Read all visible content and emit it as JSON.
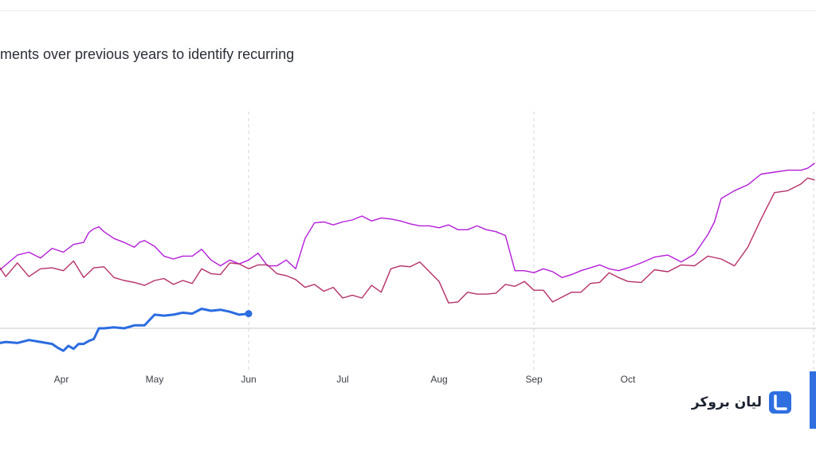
{
  "header": {
    "subtitle": "ments over previous years to identify recurring"
  },
  "brand": {
    "name": "لیان بروکر",
    "logo": "lian-broker-logo",
    "color": "#2f6fe0"
  },
  "chart_data": {
    "type": "line",
    "x_axis": {
      "ticks": [
        "Apr",
        "May",
        "Jun",
        "Jul",
        "Aug",
        "Sep",
        "Oct"
      ],
      "tick_positions": [
        0.08,
        1.0,
        2.0,
        3.0,
        4.0,
        5.0,
        6.0
      ],
      "gridlines_at_ticks": [
        "Jun",
        "Sep"
      ],
      "range": [
        -0.45,
        7.4
      ]
    },
    "y_axis": {
      "range": [
        -4,
        22
      ],
      "baseline": 0,
      "labels_visible": false
    },
    "grid": true,
    "series": [
      {
        "color": "#b41cd9",
        "stroke_width": 1.4,
        "x": [
          -0.45,
          -0.4,
          -0.3,
          -0.2,
          -0.1,
          0.0,
          0.1,
          0.2,
          0.3,
          0.35,
          0.4,
          0.45,
          0.5,
          0.6,
          0.7,
          0.8,
          0.85,
          0.9,
          1.0,
          1.1,
          1.2,
          1.3,
          1.4,
          1.5,
          1.6,
          1.7,
          1.8,
          1.9,
          2.0,
          2.1,
          2.2,
          2.3,
          2.4,
          2.5,
          2.6,
          2.7,
          2.8,
          2.9,
          3.0,
          3.1,
          3.2,
          3.3,
          3.4,
          3.5,
          3.6,
          3.7,
          3.8,
          3.9,
          4.0,
          4.1,
          4.2,
          4.3,
          4.4,
          4.5,
          4.6,
          4.7,
          4.8,
          4.9,
          5.0,
          5.1,
          5.2,
          5.3,
          5.4,
          5.5,
          5.6,
          5.7,
          5.8,
          5.9,
          6.0,
          6.1,
          6.2,
          6.3,
          6.4,
          6.5,
          6.6,
          6.65,
          6.7,
          6.8,
          6.9,
          7.0,
          7.1,
          7.2,
          7.3,
          7.35,
          7.4
        ],
        "y": [
          6,
          6.5,
          7.5,
          7.8,
          7.2,
          8.2,
          7.8,
          8.6,
          8.8,
          9.8,
          10.2,
          10.4,
          9.9,
          9.2,
          8.8,
          8.3,
          8.8,
          9,
          8.4,
          7.4,
          7.1,
          7.4,
          7.4,
          8.1,
          7,
          6.4,
          7,
          6.6,
          7,
          7.7,
          6.4,
          6.4,
          7,
          6.1,
          9.2,
          10.8,
          10.9,
          10.6,
          10.9,
          11.1,
          11.5,
          11,
          11.3,
          11.2,
          11,
          10.7,
          10.5,
          10.5,
          10.3,
          10.6,
          10.1,
          10.1,
          10.5,
          10.1,
          9.9,
          9.5,
          5.9,
          5.9,
          5.7,
          6.1,
          5.8,
          5.2,
          5.5,
          5.9,
          6.2,
          6.5,
          6.1,
          5.9,
          6.2,
          6.7,
          7.3,
          7.5,
          6.8,
          7.6,
          9.6,
          10.9,
          13.3,
          14.1,
          14.7,
          15.8,
          16,
          16.2,
          16.2,
          16.4,
          16.9
        ]
      },
      {
        "color": "#b5306a",
        "stroke_width": 1.4,
        "x": [
          -0.45,
          -0.4,
          -0.3,
          -0.2,
          -0.1,
          0.0,
          0.1,
          0.2,
          0.3,
          0.4,
          0.5,
          0.6,
          0.7,
          0.8,
          0.9,
          1.0,
          1.1,
          1.2,
          1.3,
          1.4,
          1.5,
          1.6,
          1.7,
          1.8,
          1.9,
          2.0,
          2.1,
          2.2,
          2.3,
          2.4,
          2.5,
          2.6,
          2.7,
          2.8,
          2.9,
          3.0,
          3.1,
          3.2,
          3.3,
          3.4,
          3.5,
          3.6,
          3.7,
          3.8,
          3.9,
          4.0,
          4.1,
          4.2,
          4.3,
          4.4,
          4.5,
          4.6,
          4.7,
          4.8,
          4.9,
          5.0,
          5.1,
          5.2,
          5.3,
          5.4,
          5.5,
          5.6,
          5.7,
          5.8,
          5.9,
          6.0,
          6.1,
          6.2,
          6.3,
          6.4,
          6.5,
          6.6,
          6.7,
          6.8,
          6.9,
          7.0,
          7.1,
          7.2,
          7.3,
          7.35,
          7.4
        ],
        "y": [
          6.2,
          5.3,
          6.7,
          5.3,
          6.1,
          6.2,
          5.9,
          6.9,
          5.2,
          6.2,
          6.3,
          5.2,
          4.9,
          4.7,
          4.4,
          4.9,
          5.1,
          4.5,
          4.9,
          4.6,
          6.1,
          5.6,
          5.5,
          6.7,
          6.6,
          6.1,
          6.5,
          6.5,
          5.6,
          5.4,
          5,
          4.2,
          4.5,
          3.8,
          4.2,
          3.1,
          3.4,
          3.1,
          4.4,
          3.7,
          6.1,
          6.4,
          6.3,
          6.8,
          5.8,
          4.8,
          2.6,
          2.7,
          3.7,
          3.5,
          3.5,
          3.6,
          4.5,
          4.3,
          4.8,
          3.9,
          3.9,
          2.7,
          3.2,
          3.7,
          3.7,
          4.6,
          4.7,
          5.7,
          5.2,
          4.8,
          4.7,
          6,
          5.8,
          6.5,
          6.4,
          7.4,
          7.1,
          6.4,
          8.3,
          11.2,
          13.9,
          14.1,
          14.8,
          15.4,
          15.2
        ]
      },
      {
        "color": "#2b6ce0",
        "stroke_width": 3,
        "end_marker": true,
        "x": [
          -0.45,
          -0.4,
          -0.3,
          -0.2,
          -0.1,
          0.0,
          0.05,
          0.1,
          0.15,
          0.2,
          0.25,
          0.3,
          0.35,
          0.4,
          0.45,
          0.5,
          0.6,
          0.7,
          0.8,
          0.9,
          1.0,
          1.1,
          1.2,
          1.3,
          1.4,
          1.5,
          1.6,
          1.7,
          1.8,
          1.9,
          2.0
        ],
        "y": [
          -1.5,
          -1.4,
          -1.5,
          -1.2,
          -1.4,
          -1.6,
          -2,
          -2.3,
          -1.8,
          -2.1,
          -1.6,
          -1.6,
          -1.3,
          -1.1,
          0,
          0,
          0.1,
          0,
          0.3,
          0.3,
          1.4,
          1.3,
          1.4,
          1.6,
          1.5,
          2,
          1.8,
          1.9,
          1.7,
          1.4,
          1.5
        ]
      }
    ]
  }
}
